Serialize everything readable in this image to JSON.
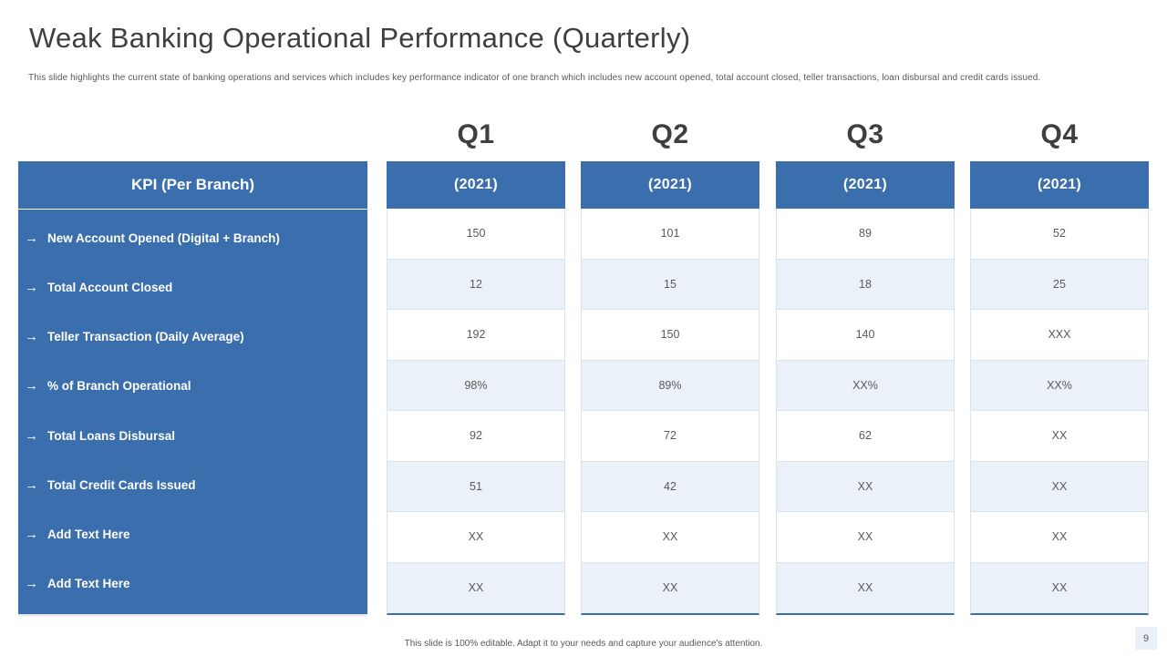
{
  "slide": {
    "title": "Weak Banking Operational Performance (Quarterly)",
    "subtitle": "This slide highlights the current state of banking operations and services which includes key performance indicator of one branch which includes new account opened, total account closed, teller transactions, loan disbursal and credit cards issued.",
    "footer": "This slide is 100% editable. Adapt it to your needs and capture your audience's attention.",
    "page_number": "9"
  },
  "table": {
    "kpi_header": "KPI (Per Branch)",
    "arrow_icon": "→",
    "kpi_rows": [
      "New Account Opened (Digital + Branch)",
      "Total Account Closed",
      "Teller Transaction (Daily Average)",
      "% of Branch Operational",
      "Total Loans Disbursal",
      "Total Credit Cards Issued",
      "Add Text Here",
      "Add Text Here"
    ],
    "quarters": [
      {
        "label": "Q1",
        "year": "(2021)",
        "values": [
          "150",
          "12",
          "192",
          "98%",
          "92",
          "51",
          "XX",
          "XX"
        ]
      },
      {
        "label": "Q2",
        "year": "(2021)",
        "values": [
          "101",
          "15",
          "150",
          "89%",
          "72",
          "42",
          "XX",
          "XX"
        ]
      },
      {
        "label": "Q3",
        "year": "(2021)",
        "values": [
          "89",
          "18",
          "140",
          "XX%",
          "62",
          "XX",
          "XX",
          "XX"
        ]
      },
      {
        "label": "Q4",
        "year": "(2021)",
        "values": [
          "52",
          "25",
          "XXX",
          "XX%",
          "XX",
          "XX",
          "XX",
          "XX"
        ]
      }
    ]
  },
  "colors": {
    "accent_blue": "#3a6ead",
    "stripe_light_blue": "#ebf1f8",
    "cell_border": "#dce2eb",
    "title_text": "#3f3f3f",
    "body_text": "#595959"
  },
  "chart_data": {
    "type": "table",
    "title": "Weak Banking Operational Performance (Quarterly)",
    "row_header": "KPI (Per Branch)",
    "columns": [
      "Q1 (2021)",
      "Q2 (2021)",
      "Q3 (2021)",
      "Q4 (2021)"
    ],
    "rows": [
      {
        "kpi": "New Account Opened (Digital + Branch)",
        "values": [
          "150",
          "101",
          "89",
          "52"
        ]
      },
      {
        "kpi": "Total Account Closed",
        "values": [
          "12",
          "15",
          "18",
          "25"
        ]
      },
      {
        "kpi": "Teller Transaction (Daily Average)",
        "values": [
          "192",
          "150",
          "140",
          "XXX"
        ]
      },
      {
        "kpi": "% of Branch Operational",
        "values": [
          "98%",
          "89%",
          "XX%",
          "XX%"
        ]
      },
      {
        "kpi": "Total Loans Disbursal",
        "values": [
          "92",
          "72",
          "62",
          "XX"
        ]
      },
      {
        "kpi": "Total Credit Cards Issued",
        "values": [
          "51",
          "42",
          "XX",
          "XX"
        ]
      },
      {
        "kpi": "Add Text Here",
        "values": [
          "XX",
          "XX",
          "XX",
          "XX"
        ]
      },
      {
        "kpi": "Add Text Here",
        "values": [
          "XX",
          "XX",
          "XX",
          "XX"
        ]
      }
    ]
  }
}
